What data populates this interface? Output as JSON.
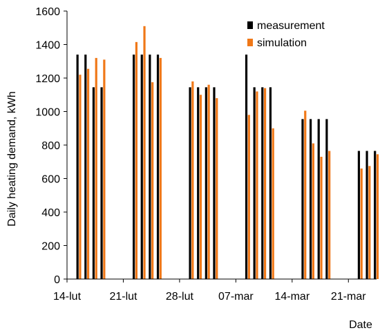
{
  "chart_data": {
    "type": "bar",
    "title": "",
    "xlabel": "Date",
    "ylabel": "Daily heating demand, kWh",
    "ylim": [
      0,
      1600
    ],
    "yticks": [
      0,
      200,
      400,
      600,
      800,
      1000,
      1200,
      1400,
      1600
    ],
    "xlim": [
      0,
      38
    ],
    "xticks": [
      {
        "label": "14-lut",
        "pos": 0
      },
      {
        "label": "21-lut",
        "pos": 7
      },
      {
        "label": "28-lut",
        "pos": 14
      },
      {
        "label": "07-mar",
        "pos": 21
      },
      {
        "label": "14-mar",
        "pos": 28
      },
      {
        "label": "21-mar",
        "pos": 35
      }
    ],
    "grid": false,
    "legend_position": "top-right",
    "series": [
      {
        "name": "measurement",
        "color": "#000000",
        "points": [
          {
            "x": 1.5,
            "y": 1340
          },
          {
            "x": 2.5,
            "y": 1340
          },
          {
            "x": 3.5,
            "y": 1145
          },
          {
            "x": 4.5,
            "y": 1145
          },
          {
            "x": 8.5,
            "y": 1340
          },
          {
            "x": 9.5,
            "y": 1340
          },
          {
            "x": 10.5,
            "y": 1340
          },
          {
            "x": 11.5,
            "y": 1340
          },
          {
            "x": 15.5,
            "y": 1145
          },
          {
            "x": 16.5,
            "y": 1145
          },
          {
            "x": 17.5,
            "y": 1145
          },
          {
            "x": 18.5,
            "y": 1145
          },
          {
            "x": 22.5,
            "y": 1340
          },
          {
            "x": 23.5,
            "y": 1145
          },
          {
            "x": 24.5,
            "y": 1145
          },
          {
            "x": 25.5,
            "y": 1145
          },
          {
            "x": 29.5,
            "y": 955
          },
          {
            "x": 30.5,
            "y": 955
          },
          {
            "x": 31.5,
            "y": 955
          },
          {
            "x": 32.5,
            "y": 955
          },
          {
            "x": 36.5,
            "y": 765
          },
          {
            "x": 37.5,
            "y": 765
          },
          {
            "x": 38.5,
            "y": 765
          }
        ]
      },
      {
        "name": "simulation",
        "color": "#f07818",
        "points": [
          {
            "x": 1.5,
            "y": 1220
          },
          {
            "x": 2.5,
            "y": 1255
          },
          {
            "x": 3.5,
            "y": 1320
          },
          {
            "x": 4.5,
            "y": 1310
          },
          {
            "x": 8.5,
            "y": 1415
          },
          {
            "x": 9.5,
            "y": 1510
          },
          {
            "x": 10.5,
            "y": 1175
          },
          {
            "x": 11.5,
            "y": 1320
          },
          {
            "x": 15.5,
            "y": 1180
          },
          {
            "x": 16.5,
            "y": 1100
          },
          {
            "x": 17.5,
            "y": 1160
          },
          {
            "x": 18.5,
            "y": 1080
          },
          {
            "x": 22.5,
            "y": 980
          },
          {
            "x": 23.5,
            "y": 1120
          },
          {
            "x": 24.5,
            "y": 1140
          },
          {
            "x": 25.5,
            "y": 900
          },
          {
            "x": 29.5,
            "y": 1005
          },
          {
            "x": 30.5,
            "y": 810
          },
          {
            "x": 31.5,
            "y": 730
          },
          {
            "x": 32.5,
            "y": 765
          },
          {
            "x": 36.5,
            "y": 660
          },
          {
            "x": 37.5,
            "y": 675
          },
          {
            "x": 38.5,
            "y": 745
          }
        ]
      }
    ]
  }
}
